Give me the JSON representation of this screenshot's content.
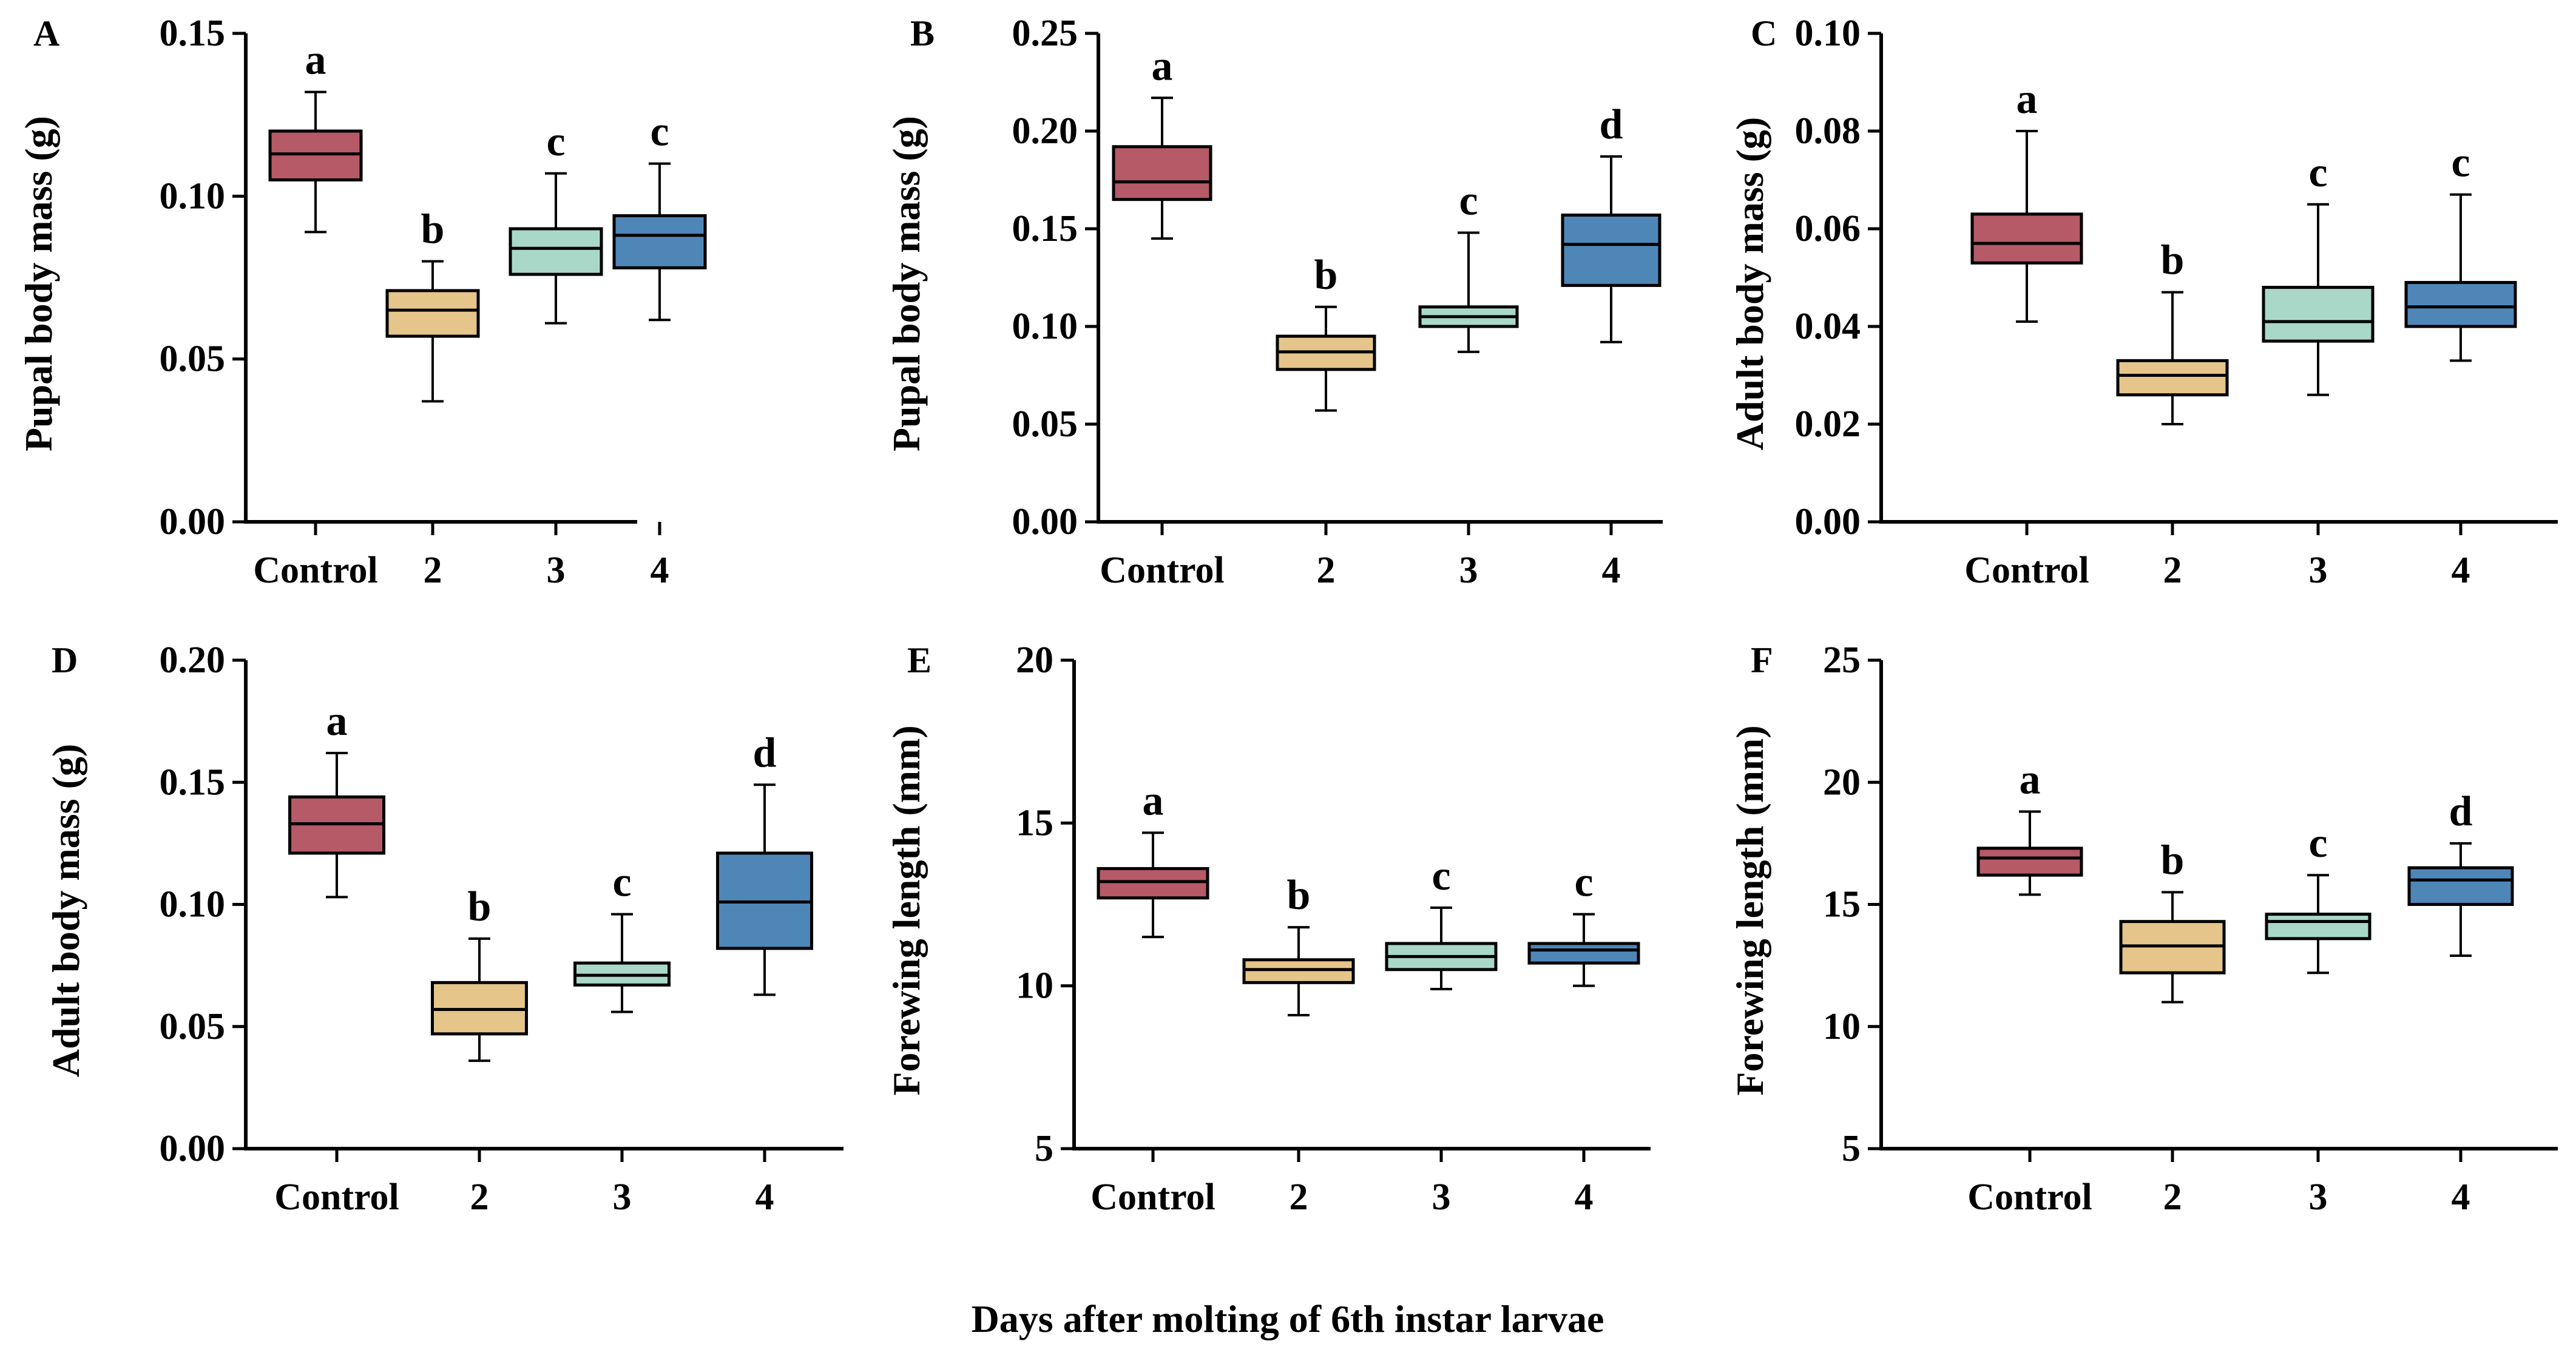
{
  "chart_data": [
    {
      "panel": "A",
      "type": "box",
      "ylabel": "Pupal body mass (g)",
      "ylim": [
        0,
        0.15
      ],
      "yticks": [
        0,
        0.05,
        0.1,
        0.15
      ],
      "ytick_labels": [
        "0.00",
        "0.05",
        "0.10",
        "0.15"
      ],
      "categories": [
        "Control",
        "2",
        "3",
        "4"
      ],
      "boxes": [
        {
          "min": 0.089,
          "q1": 0.105,
          "median": 0.113,
          "q3": 0.12,
          "max": 0.132,
          "sig": "a"
        },
        {
          "min": 0.037,
          "q1": 0.057,
          "median": 0.065,
          "q3": 0.071,
          "max": 0.08,
          "sig": "b"
        },
        {
          "min": 0.061,
          "q1": 0.076,
          "median": 0.084,
          "q3": 0.09,
          "max": 0.107,
          "sig": "c"
        },
        {
          "min": 0.062,
          "q1": 0.078,
          "median": 0.088,
          "q3": 0.094,
          "max": 0.11,
          "sig": "c"
        }
      ]
    },
    {
      "panel": "B",
      "type": "box",
      "ylabel": "Pupal body mass (g)",
      "ylim": [
        0,
        0.25
      ],
      "yticks": [
        0,
        0.05,
        0.1,
        0.15,
        0.2,
        0.25
      ],
      "ytick_labels": [
        "0.00",
        "0.05",
        "0.10",
        "0.15",
        "0.20",
        "0.25"
      ],
      "categories": [
        "Control",
        "2",
        "3",
        "4"
      ],
      "boxes": [
        {
          "min": 0.145,
          "q1": 0.165,
          "median": 0.174,
          "q3": 0.192,
          "max": 0.217,
          "sig": "a"
        },
        {
          "min": 0.057,
          "q1": 0.078,
          "median": 0.087,
          "q3": 0.095,
          "max": 0.11,
          "sig": "b"
        },
        {
          "min": 0.087,
          "q1": 0.1,
          "median": 0.105,
          "q3": 0.11,
          "max": 0.148,
          "sig": "c"
        },
        {
          "min": 0.092,
          "q1": 0.121,
          "median": 0.142,
          "q3": 0.157,
          "max": 0.187,
          "sig": "d"
        }
      ]
    },
    {
      "panel": "C",
      "type": "box",
      "ylabel": "Adult body mass (g)",
      "ylim": [
        0,
        0.1
      ],
      "yticks": [
        0,
        0.02,
        0.04,
        0.06,
        0.08,
        0.1
      ],
      "ytick_labels": [
        "0.00",
        "0.02",
        "0.04",
        "0.06",
        "0.08",
        "0.10"
      ],
      "categories": [
        "Control",
        "2",
        "3",
        "4"
      ],
      "boxes": [
        {
          "min": 0.041,
          "q1": 0.053,
          "median": 0.057,
          "q3": 0.063,
          "max": 0.08,
          "sig": "a"
        },
        {
          "min": 0.02,
          "q1": 0.026,
          "median": 0.03,
          "q3": 0.033,
          "max": 0.047,
          "sig": "b"
        },
        {
          "min": 0.026,
          "q1": 0.037,
          "median": 0.041,
          "q3": 0.048,
          "max": 0.065,
          "sig": "c"
        },
        {
          "min": 0.033,
          "q1": 0.04,
          "median": 0.044,
          "q3": 0.049,
          "max": 0.067,
          "sig": "c"
        }
      ]
    },
    {
      "panel": "D",
      "type": "box",
      "ylabel": "Adult body mass (g)",
      "ylim": [
        0,
        0.2
      ],
      "yticks": [
        0,
        0.05,
        0.1,
        0.15,
        0.2
      ],
      "ytick_labels": [
        "0.00",
        "0.05",
        "0.10",
        "0.15",
        "0.20"
      ],
      "categories": [
        "Control",
        "2",
        "3",
        "4"
      ],
      "boxes": [
        {
          "min": 0.103,
          "q1": 0.121,
          "median": 0.133,
          "q3": 0.144,
          "max": 0.162,
          "sig": "a"
        },
        {
          "min": 0.036,
          "q1": 0.047,
          "median": 0.057,
          "q3": 0.068,
          "max": 0.086,
          "sig": "b"
        },
        {
          "min": 0.056,
          "q1": 0.067,
          "median": 0.071,
          "q3": 0.076,
          "max": 0.096,
          "sig": "c"
        },
        {
          "min": 0.063,
          "q1": 0.082,
          "median": 0.101,
          "q3": 0.121,
          "max": 0.149,
          "sig": "d"
        }
      ]
    },
    {
      "panel": "E",
      "type": "box",
      "ylabel": "Forewing length (mm)",
      "ylim": [
        5,
        20
      ],
      "yticks": [
        5,
        10,
        15,
        20
      ],
      "ytick_labels": [
        "5",
        "10",
        "15",
        "20"
      ],
      "categories": [
        "Control",
        "2",
        "3",
        "4"
      ],
      "boxes": [
        {
          "min": 11.5,
          "q1": 12.7,
          "median": 13.2,
          "q3": 13.6,
          "max": 14.7,
          "sig": "a"
        },
        {
          "min": 9.1,
          "q1": 10.1,
          "median": 10.5,
          "q3": 10.8,
          "max": 11.8,
          "sig": "b"
        },
        {
          "min": 9.9,
          "q1": 10.5,
          "median": 10.9,
          "q3": 11.3,
          "max": 12.4,
          "sig": "c"
        },
        {
          "min": 10.0,
          "q1": 10.7,
          "median": 11.1,
          "q3": 11.3,
          "max": 12.2,
          "sig": "c"
        }
      ]
    },
    {
      "panel": "F",
      "type": "box",
      "ylabel": "Forewing length (mm)",
      "ylim": [
        5,
        25
      ],
      "yticks": [
        5,
        10,
        15,
        20,
        25
      ],
      "ytick_labels": [
        "5",
        "10",
        "15",
        "20",
        "25"
      ],
      "categories": [
        "Control",
        "2",
        "3",
        "4"
      ],
      "boxes": [
        {
          "min": 15.4,
          "q1": 16.2,
          "median": 16.9,
          "q3": 17.3,
          "max": 18.8,
          "sig": "a"
        },
        {
          "min": 11.0,
          "q1": 12.2,
          "median": 13.3,
          "q3": 14.3,
          "max": 15.5,
          "sig": "b"
        },
        {
          "min": 12.2,
          "q1": 13.6,
          "median": 14.3,
          "q3": 14.6,
          "max": 16.2,
          "sig": "c"
        },
        {
          "min": 12.9,
          "q1": 15.0,
          "median": 16.0,
          "q3": 16.5,
          "max": 17.5,
          "sig": "d"
        }
      ]
    }
  ],
  "colors": {
    "Control": "#b55a66",
    "2": "#e6c58a",
    "3": "#a9d8c8",
    "4": "#4f86b8"
  },
  "common_xlabel": "Days after molting of 6th instar larvae"
}
